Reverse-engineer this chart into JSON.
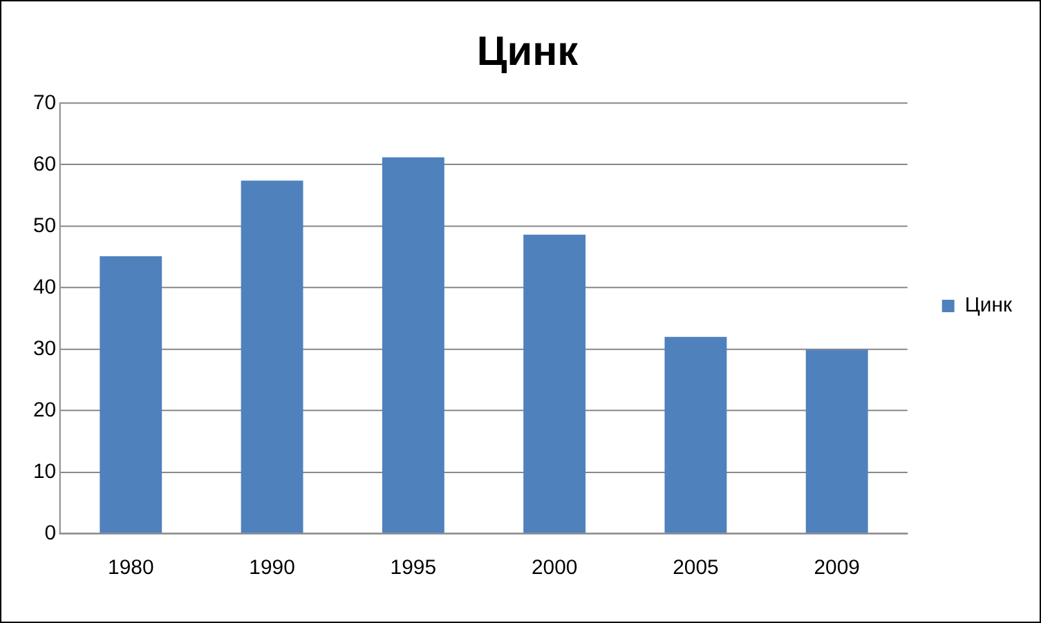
{
  "chart_data": {
    "type": "bar",
    "title": "Цинк",
    "categories": [
      "1980",
      "1990",
      "1995",
      "2000",
      "2005",
      "2009"
    ],
    "series": [
      {
        "name": "Цинк",
        "color": "#4f81bd",
        "values": [
          45.1,
          57.4,
          61.2,
          48.6,
          32.0,
          29.9
        ]
      }
    ],
    "ylim": [
      0,
      70
    ],
    "yticks": [
      0,
      10,
      20,
      30,
      40,
      50,
      60,
      70
    ],
    "grid": "y",
    "legend": "right"
  }
}
